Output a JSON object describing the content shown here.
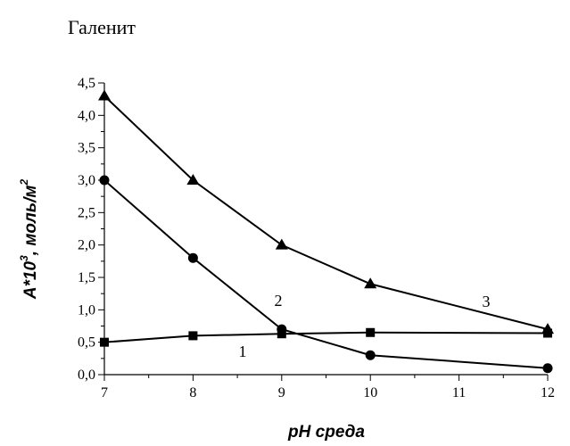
{
  "chart_data": {
    "type": "line",
    "title": "Галенит",
    "xlabel": "pH среда",
    "ylabel_main": "A*10",
    "ylabel_exp": "3",
    "ylabel_unit": ", моль/м",
    "ylabel_unit_exp": "2",
    "xlim": [
      7,
      12
    ],
    "ylim": [
      0,
      4.5
    ],
    "x_ticks": [
      "7",
      "8",
      "9",
      "10",
      "11",
      "12"
    ],
    "x_tick_values": [
      7,
      8,
      9,
      10,
      11,
      12
    ],
    "y_ticks": [
      "0,0",
      "0,5",
      "1,0",
      "1,5",
      "2,0",
      "2,5",
      "3,0",
      "3,5",
      "4,0",
      "4,5"
    ],
    "y_tick_values": [
      0,
      0.5,
      1.0,
      1.5,
      2.0,
      2.5,
      3.0,
      3.5,
      4.0,
      4.5
    ],
    "grid": false,
    "series": [
      {
        "label": "1",
        "marker": "square",
        "x": [
          7,
          8,
          9,
          10,
          12
        ],
        "y": [
          0.5,
          0.6,
          0.63,
          0.65,
          0.64
        ]
      },
      {
        "label": "2",
        "marker": "circle",
        "x": [
          7,
          8,
          9,
          10,
          12
        ],
        "y": [
          3.0,
          1.8,
          0.7,
          0.3,
          0.1
        ]
      },
      {
        "label": "3",
        "marker": "triangle",
        "x": [
          7,
          8,
          9,
          10,
          12
        ],
        "y": [
          4.3,
          3.0,
          2.0,
          1.4,
          0.7
        ]
      }
    ]
  }
}
